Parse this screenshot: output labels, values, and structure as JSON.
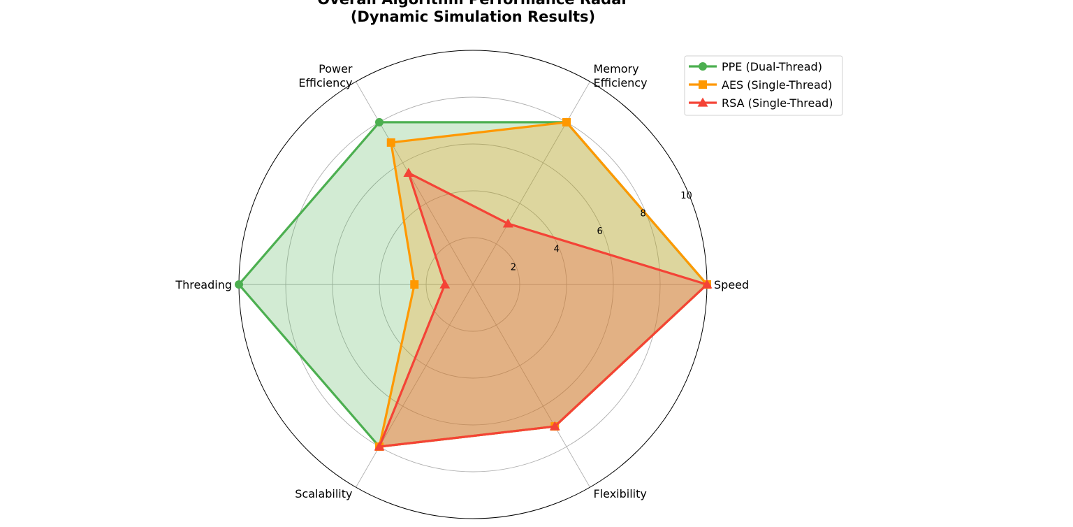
{
  "chart_data": {
    "type": "radar",
    "title_lines": [
      "Overall Algorithm Performance Radar",
      "(Dynamic Simulation Results)"
    ],
    "axes": [
      "Speed",
      "Memory\nEfficiency",
      "Power\nEfficiency",
      "Threading",
      "Scalability",
      "Flexibility"
    ],
    "rlim": [
      0,
      10
    ],
    "rticks": [
      2,
      4,
      6,
      8,
      10
    ],
    "grid": true,
    "legend_position": "top-right",
    "series": [
      {
        "name": "PPE (Dual-Thread)",
        "values": [
          10,
          8,
          8,
          10,
          8,
          7
        ],
        "color": "#4caf50",
        "marker": "circle"
      },
      {
        "name": "AES (Single-Thread)",
        "values": [
          10,
          8,
          7,
          2.5,
          8,
          7
        ],
        "color": "#ff9800",
        "marker": "square"
      },
      {
        "name": "RSA (Single-Thread)",
        "values": [
          10,
          3,
          5.5,
          1.2,
          8,
          7
        ],
        "color": "#f44336",
        "marker": "triangle"
      }
    ]
  }
}
